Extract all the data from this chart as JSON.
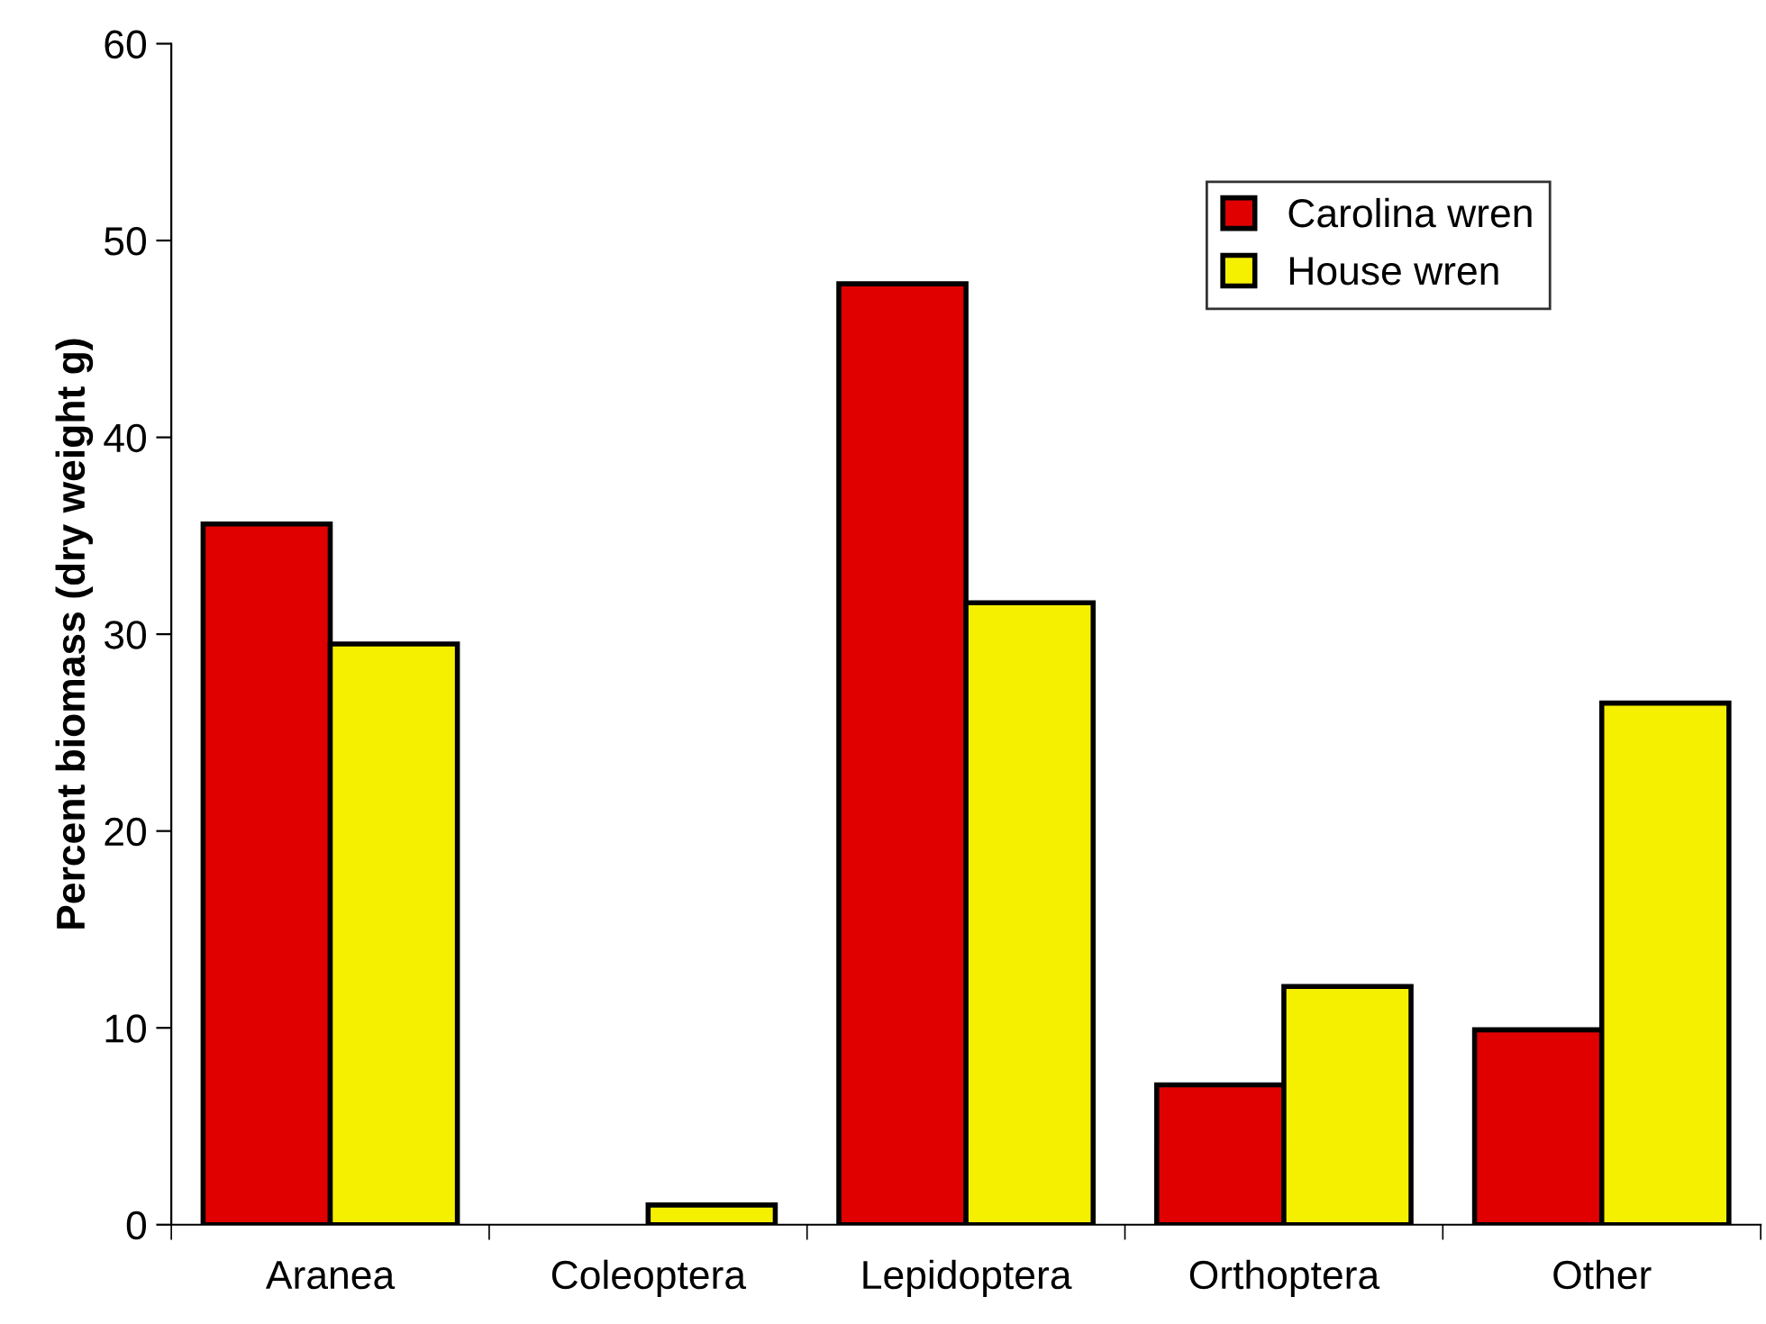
{
  "chart_data": {
    "type": "bar",
    "ylabel": "Percent biomass (dry weight g)",
    "categories": [
      "Aranea",
      "Coleoptera",
      "Lepidoptera",
      "Orthoptera",
      "Other"
    ],
    "series": [
      {
        "name": "Carolina wren",
        "color": "#e00000",
        "values": [
          35.6,
          null,
          47.8,
          7.1,
          9.9
        ]
      },
      {
        "name": "House wren",
        "color": "#f5f000",
        "values": [
          29.5,
          1.0,
          31.6,
          12.1,
          26.5
        ]
      }
    ],
    "ylim": [
      0,
      60
    ],
    "yticks": [
      0,
      10,
      20,
      30,
      40,
      50,
      60
    ],
    "grid": false,
    "legend": "top right"
  }
}
